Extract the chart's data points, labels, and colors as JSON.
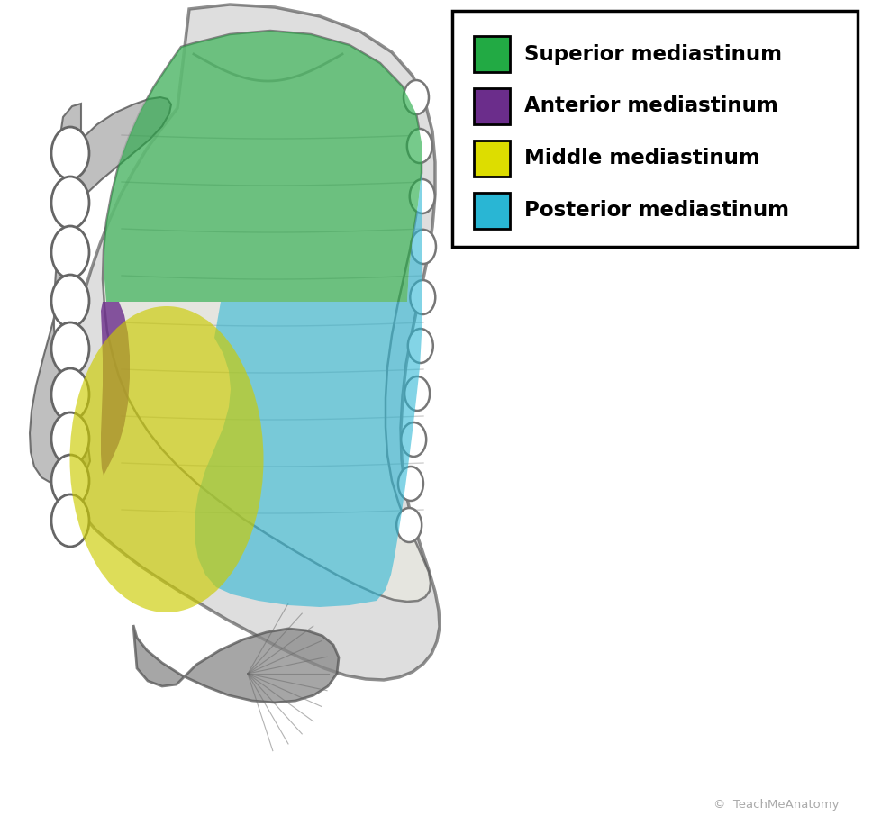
{
  "legend_items": [
    {
      "label": "Superior mediastinum",
      "color": "#22aa44",
      "edge_color": "#000000"
    },
    {
      "label": "Anterior mediastinum",
      "color": "#6b2d8b",
      "edge_color": "#000000"
    },
    {
      "label": "Middle mediastinum",
      "color": "#dddd00",
      "edge_color": "#000000"
    },
    {
      "label": "Posterior mediastinum",
      "color": "#29b6d4",
      "edge_color": "#000000"
    }
  ],
  "watermark_text": "©  TeachMeAnatomy",
  "bg_color": "#ffffff",
  "superior_color": "#22aa44",
  "superior_alpha": 0.62,
  "anterior_color": "#6b2d8b",
  "anterior_alpha": 0.8,
  "middle_color": "#cccc00",
  "middle_alpha": 0.65,
  "posterior_color": "#29b6d4",
  "posterior_alpha": 0.58
}
